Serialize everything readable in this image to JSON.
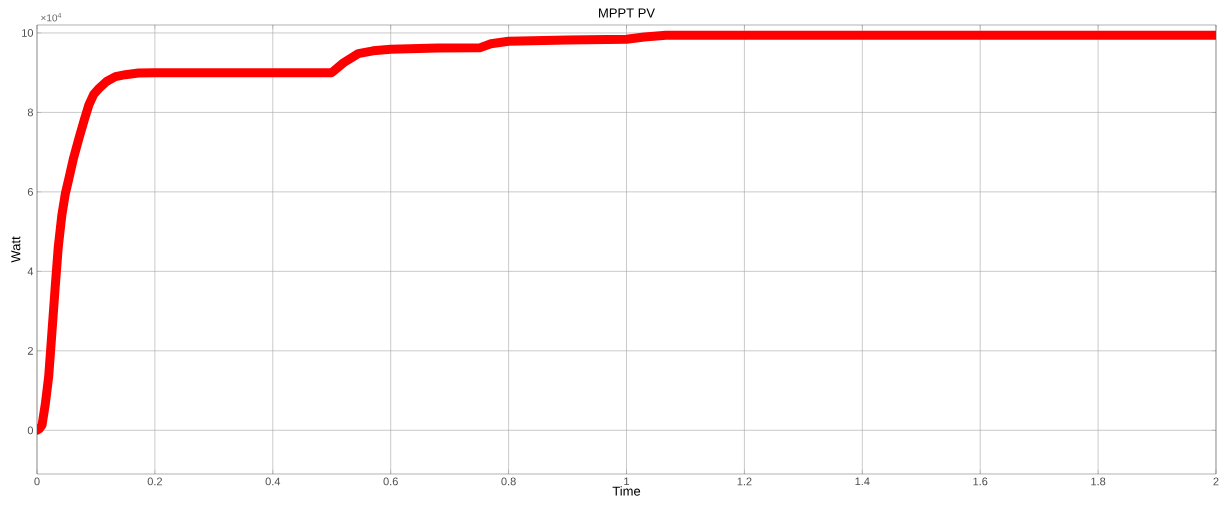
{
  "chart_data": {
    "type": "line",
    "title": "MPPT PV",
    "xlabel": "Time",
    "ylabel": "Watt",
    "annotations": [
      "×10$^{4}$"
    ],
    "xlim": [
      0,
      2
    ],
    "ylim": [
      -1.1,
      10.2
    ],
    "xticks": [
      0,
      0.2,
      0.4,
      0.6,
      0.8,
      1,
      1.2,
      1.4,
      1.6,
      1.8,
      2
    ],
    "yticks": [
      0,
      2,
      4,
      6,
      8,
      10
    ],
    "grid": true,
    "series": [
      {
        "color": "#ff0000",
        "x": [
          0,
          0.004,
          0.0085,
          0.014,
          0.0198,
          0.025,
          0.031,
          0.036,
          0.042,
          0.048,
          0.054,
          0.062,
          0.071,
          0.08,
          0.088,
          0.096,
          0.105,
          0.118,
          0.133,
          0.15,
          0.172,
          0.2,
          0.3,
          0.4,
          0.5,
          0.52,
          0.545,
          0.57,
          0.6,
          0.68,
          0.752,
          0.77,
          0.8,
          0.9,
          1.0,
          1.03,
          1.067,
          1.2,
          1.4,
          1.6,
          1.8,
          2.0
        ],
        "values": [
          0,
          0.04,
          0.13,
          0.65,
          1.35,
          2.4,
          3.63,
          4.6,
          5.4,
          5.95,
          6.33,
          6.85,
          7.34,
          7.8,
          8.19,
          8.45,
          8.6,
          8.78,
          8.9,
          8.95,
          8.99,
          9.0,
          9.0,
          9.0,
          9.0,
          9.25,
          9.48,
          9.55,
          9.59,
          9.62,
          9.63,
          9.73,
          9.79,
          9.82,
          9.84,
          9.9,
          9.94,
          9.94,
          9.94,
          9.94,
          9.94,
          9.94
        ]
      }
    ]
  }
}
